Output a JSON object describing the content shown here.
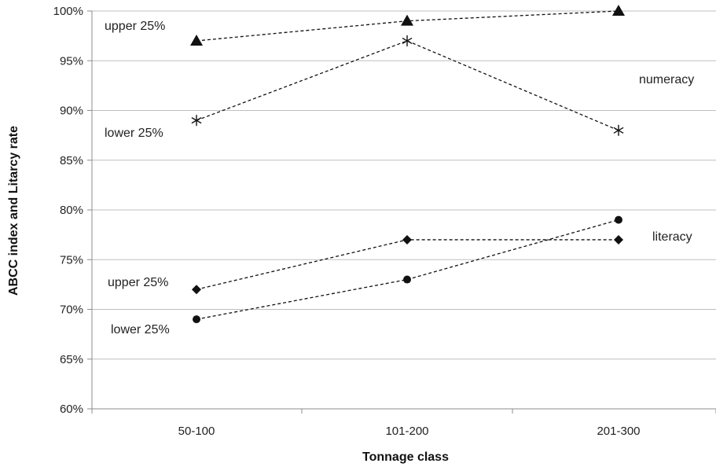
{
  "chart_data": {
    "type": "line",
    "title": "",
    "xlabel": "Tonnage class",
    "ylabel": "ABCC index and Litarcy rate",
    "categories": [
      "50-100",
      "101-200",
      "201-300"
    ],
    "ylim": [
      60,
      100
    ],
    "yticks": [
      "60%",
      "65%",
      "70%",
      "75%",
      "80%",
      "85%",
      "90%",
      "95%",
      "100%"
    ],
    "grid": true,
    "series": [
      {
        "group": "numeracy",
        "label": "upper 25%",
        "marker": "triangle",
        "values": [
          97,
          99,
          100
        ]
      },
      {
        "group": "numeracy",
        "label": "lower 25%",
        "marker": "asterisk",
        "values": [
          89,
          97,
          88
        ]
      },
      {
        "group": "literacy",
        "label": "upper 25%",
        "marker": "diamond",
        "values": [
          72,
          77,
          77
        ]
      },
      {
        "group": "literacy",
        "label": "lower 25%",
        "marker": "circle",
        "values": [
          69,
          73,
          79
        ]
      }
    ],
    "annotations": {
      "numeracy": "numeracy",
      "literacy": "literacy",
      "numeracy_upper": "upper 25%",
      "numeracy_lower": "lower 25%",
      "literacy_upper": "upper 25%",
      "literacy_lower": "lower 25%"
    },
    "line_style": "dashed",
    "colors": {
      "line": "#111111",
      "grid": "#bfbfbf",
      "axis": "#8c8c8c"
    }
  }
}
